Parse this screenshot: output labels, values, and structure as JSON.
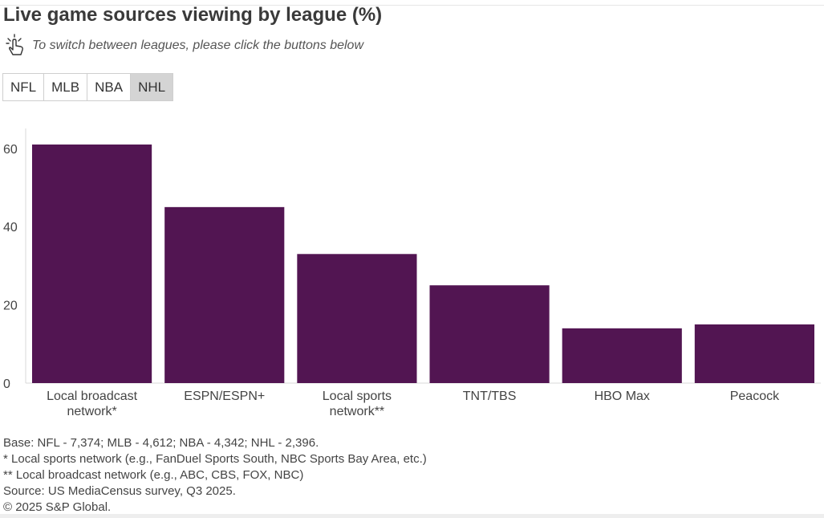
{
  "title": "Live game sources viewing by league (%)",
  "hint": {
    "text": "To switch between leagues, please click the buttons below",
    "icon": "hand-tap-icon"
  },
  "league_buttons": [
    {
      "label": "NFL",
      "active": false
    },
    {
      "label": "MLB",
      "active": false
    },
    {
      "label": "NBA",
      "active": false
    },
    {
      "label": "NHL",
      "active": true
    }
  ],
  "colors": {
    "bar": "#521552",
    "axis": "#d9d9d9",
    "active_button_bg": "#d4d4d4"
  },
  "chart_data": {
    "type": "bar",
    "title": "Live game sources viewing by league (%)",
    "selected_league": "NHL",
    "categories": [
      [
        "Local broadcast",
        "network*"
      ],
      [
        "ESPN/ESPN+"
      ],
      [
        "Local sports",
        "network**"
      ],
      [
        "TNT/TBS"
      ],
      [
        "HBO Max"
      ],
      [
        "Peacock"
      ]
    ],
    "values": [
      61,
      45,
      33,
      25,
      14,
      15
    ],
    "y_ticks": [
      0,
      20,
      40,
      60
    ],
    "ylim": [
      0,
      65
    ],
    "xlabel": "",
    "ylabel": "",
    "grid": false
  },
  "footnotes": [
    "Base: NFL - 7,374; MLB - 4,612; NBA - 4,342; NHL - 2,396.",
    "* Local sports network (e.g., FanDuel Sports South, NBC Sports Bay Area, etc.)",
    "** Local broadcast network (e.g., ABC, CBS, FOX, NBC)",
    "Source: US MediaCensus survey, Q3 2025.",
    "© 2025 S&P Global."
  ]
}
